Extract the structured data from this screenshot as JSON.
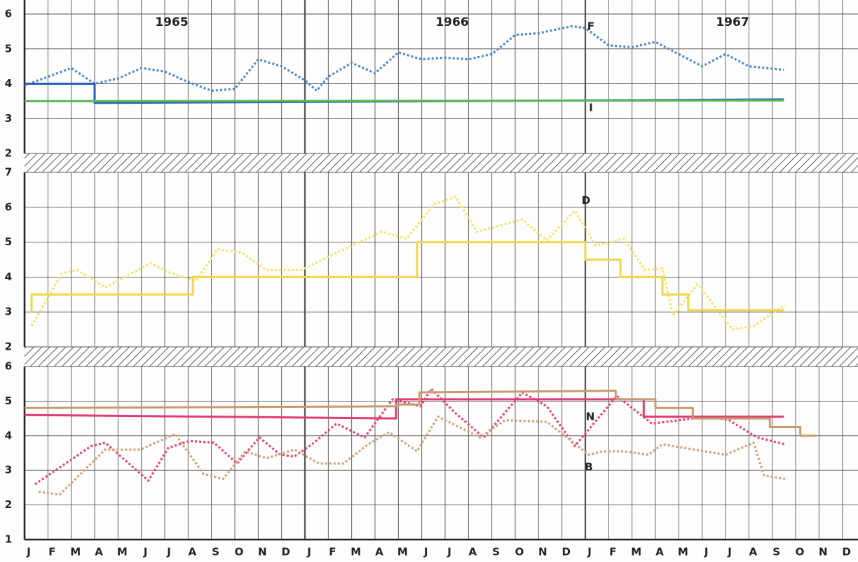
{
  "chart_data": [
    {
      "type": "line",
      "year_labels": [
        "1965",
        "1966",
        "1967"
      ],
      "xlim": [
        0,
        35.67
      ],
      "xticks": [
        0,
        1,
        2,
        3,
        4,
        5,
        6,
        7,
        8,
        9,
        10,
        11,
        12,
        13,
        14,
        15,
        16,
        17,
        18,
        19,
        20,
        21,
        22,
        23,
        24,
        25,
        26,
        27,
        28,
        29,
        30,
        31,
        32,
        33,
        34,
        35
      ],
      "ylim": [
        2,
        6
      ],
      "yticks": [
        2,
        3,
        4,
        5,
        6
      ],
      "grid": true,
      "series": [
        {
          "name": "F",
          "color": "#4a88d4",
          "style": "dotted",
          "x": [
            0,
            1,
            2,
            3,
            4,
            5,
            6,
            7,
            8,
            9,
            10,
            11,
            12,
            12.5,
            13,
            14,
            15,
            16,
            17,
            18,
            19,
            20,
            21,
            22,
            23.4,
            24,
            25,
            26,
            27,
            28,
            29,
            30,
            31,
            32.5
          ],
          "values": [
            3.95,
            4.2,
            4.45,
            4.0,
            4.15,
            4.45,
            4.35,
            4.05,
            3.8,
            3.85,
            4.7,
            4.5,
            4.1,
            3.8,
            4.2,
            4.6,
            4.3,
            4.9,
            4.7,
            4.75,
            4.7,
            4.85,
            5.4,
            5.45,
            5.65,
            5.6,
            5.1,
            5.05,
            5.2,
            4.85,
            4.5,
            4.85,
            4.5,
            4.4
          ]
        },
        {
          "name": "I",
          "color": "#2c5fb8",
          "style": "solid",
          "x": [
            0,
            3,
            3,
            32.5
          ],
          "values": [
            4.0,
            4.0,
            3.45,
            3.55
          ]
        },
        {
          "color": "#5cb85c",
          "style": "solid",
          "x": [
            0,
            32.5
          ],
          "values": [
            3.5,
            3.52
          ]
        }
      ]
    },
    {
      "type": "line",
      "xlim": [
        0,
        35.67
      ],
      "xticks": [
        0,
        1,
        2,
        3,
        4,
        5,
        6,
        7,
        8,
        9,
        10,
        11,
        12,
        13,
        14,
        15,
        16,
        17,
        18,
        19,
        20,
        21,
        22,
        23,
        24,
        25,
        26,
        27,
        28,
        29,
        30,
        31,
        32,
        33,
        34,
        35
      ],
      "ylim": [
        2,
        7
      ],
      "yticks": [
        2,
        3,
        4,
        5,
        6,
        7
      ],
      "grid": true,
      "series": [
        {
          "name": "D",
          "color": "#f5e36e",
          "style": "dotted",
          "x": [
            0.3,
            1.6,
            2.25,
            3.45,
            5.4,
            6.3,
            7.35,
            8.25,
            9.3,
            10.35,
            11.85,
            13.35,
            15.3,
            16.35,
            17.55,
            18.45,
            19.35,
            21.3,
            22.35,
            23.55,
            24.45,
            25.65,
            26.55,
            27.3,
            27.75,
            28.8,
            30.3,
            31.2,
            32.55
          ],
          "values": [
            2.6,
            4.1,
            4.2,
            3.7,
            4.4,
            4.1,
            3.9,
            4.8,
            4.7,
            4.2,
            4.2,
            4.7,
            5.3,
            5.1,
            6.1,
            6.3,
            5.3,
            5.65,
            5.05,
            5.9,
            4.9,
            5.1,
            4.2,
            4.25,
            2.9,
            3.8,
            2.5,
            2.6,
            3.2
          ]
        },
        {
          "color": "#f0d64a",
          "style": "solid",
          "x": [
            0.3,
            0.3,
            7.2,
            7.2,
            16.8,
            16.8,
            24,
            24,
            25.5,
            25.5,
            27.3,
            27.3,
            28.4,
            28.4,
            32.5
          ],
          "values": [
            3.0,
            3.5,
            3.5,
            4.0,
            4.0,
            5.0,
            5.0,
            4.5,
            4.5,
            4.0,
            4.0,
            3.5,
            3.5,
            3.05,
            3.05
          ]
        }
      ]
    },
    {
      "type": "line",
      "xlim": [
        0,
        35.67
      ],
      "xticks": [
        {
          "value": 0,
          "label": "J"
        },
        {
          "value": 1,
          "label": "F"
        },
        {
          "value": 2,
          "label": "M"
        },
        {
          "value": 3,
          "label": "A"
        },
        {
          "value": 4,
          "label": "M"
        },
        {
          "value": 5,
          "label": "J"
        },
        {
          "value": 6,
          "label": "J"
        },
        {
          "value": 7,
          "label": "A"
        },
        {
          "value": 8,
          "label": "S"
        },
        {
          "value": 9,
          "label": "O"
        },
        {
          "value": 10,
          "label": "N"
        },
        {
          "value": 11,
          "label": "D"
        },
        {
          "value": 12,
          "label": "J"
        },
        {
          "value": 13,
          "label": "F"
        },
        {
          "value": 14,
          "label": "M"
        },
        {
          "value": 15,
          "label": "A"
        },
        {
          "value": 16,
          "label": "M"
        },
        {
          "value": 17,
          "label": "J"
        },
        {
          "value": 18,
          "label": "J"
        },
        {
          "value": 19,
          "label": "A"
        },
        {
          "value": 20,
          "label": "S"
        },
        {
          "value": 21,
          "label": "O"
        },
        {
          "value": 22,
          "label": "N"
        },
        {
          "value": 23,
          "label": "D"
        },
        {
          "value": 24,
          "label": "J"
        },
        {
          "value": 25,
          "label": "F"
        },
        {
          "value": 26,
          "label": "M"
        },
        {
          "value": 27,
          "label": "A"
        },
        {
          "value": 28,
          "label": "M"
        },
        {
          "value": 29,
          "label": "J"
        },
        {
          "value": 30,
          "label": "J"
        },
        {
          "value": 31,
          "label": "A"
        },
        {
          "value": 32,
          "label": "S"
        },
        {
          "value": 33,
          "label": "O"
        },
        {
          "value": 34,
          "label": "N"
        },
        {
          "value": 35,
          "label": "D"
        }
      ],
      "ylim": [
        1,
        6
      ],
      "yticks": [
        1,
        2,
        3,
        4,
        5,
        6
      ],
      "grid": true,
      "series": [
        {
          "name": "N",
          "color": "#e8437c",
          "style": "dotted",
          "x": [
            0.45,
            2.85,
            3.45,
            5.3,
            6.15,
            7.05,
            8.1,
            9.1,
            10.05,
            10.95,
            11.55,
            12.3,
            13.35,
            14.55,
            15.75,
            16.95,
            17.4,
            18.45,
            19.65,
            21.3,
            22.35,
            23.55,
            25.35,
            26.85,
            29.25,
            30.15,
            31.35,
            32.55
          ],
          "values": [
            2.6,
            3.7,
            3.8,
            2.7,
            3.65,
            3.85,
            3.8,
            3.2,
            3.95,
            3.45,
            3.4,
            3.75,
            4.35,
            3.95,
            5.05,
            4.85,
            5.35,
            4.65,
            3.95,
            5.25,
            4.85,
            3.7,
            5.15,
            4.35,
            4.55,
            4.45,
            3.95,
            3.75
          ]
        },
        {
          "color": "#e23a72",
          "style": "solid",
          "x": [
            0,
            15.9,
            15.9,
            26.5,
            26.5,
            32.5
          ],
          "values": [
            4.6,
            4.5,
            5.05,
            5.05,
            4.55,
            4.55
          ]
        },
        {
          "name": "B",
          "color": "#cfa27c",
          "style": "dotted",
          "x": [
            0.6,
            1.5,
            3.45,
            4.95,
            6.45,
            7.65,
            8.5,
            9.45,
            10.35,
            11.55,
            12.6,
            13.65,
            14.7,
            15.6,
            16.8,
            17.7,
            19.5,
            20.55,
            22.35,
            24.15,
            24.75,
            25.65,
            26.7,
            27.3,
            30,
            31.2,
            31.65,
            32.55
          ],
          "values": [
            2.38,
            2.3,
            3.6,
            3.6,
            4.05,
            2.9,
            2.75,
            3.55,
            3.35,
            3.6,
            3.2,
            3.2,
            3.75,
            4.1,
            3.55,
            4.55,
            3.95,
            4.45,
            4.4,
            3.45,
            3.55,
            3.55,
            3.45,
            3.75,
            3.45,
            3.8,
            2.85,
            2.75
          ]
        },
        {
          "color": "#c89a70",
          "style": "solid",
          "x": [
            0,
            15.9,
            15.9,
            16.9,
            16.9,
            25.3,
            25.3,
            27.0,
            27.0,
            28.6,
            28.6,
            31.9,
            31.9,
            33.2,
            33.2,
            33.9
          ],
          "values": [
            4.8,
            4.85,
            4.9,
            4.9,
            5.25,
            5.3,
            5.05,
            5.05,
            4.8,
            4.8,
            4.5,
            4.5,
            4.25,
            4.25,
            4.0,
            4.0
          ]
        }
      ]
    }
  ]
}
